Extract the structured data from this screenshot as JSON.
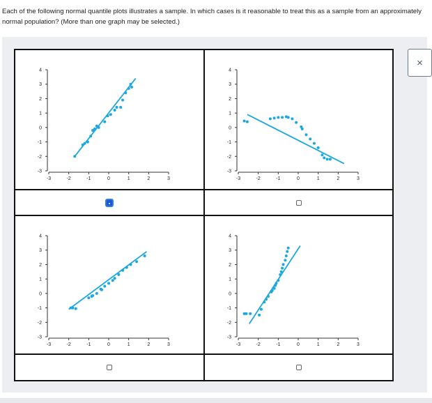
{
  "question": {
    "text": "Each of the following normal quantile plots illustrates a sample. In which cases is it reasonable to treat this as a sample from an approximately normal population? (More than one graph may be selected.)"
  },
  "colors": {
    "point": "#1ba7e0",
    "line": "#1ba7e0",
    "checkbox_selected": "#1a56d6"
  },
  "close_button": {
    "icon": "close-icon",
    "label": "×"
  },
  "plots": [
    {
      "id": "top-left",
      "checked": true,
      "chart_data": {
        "type": "scatter",
        "xlim": [
          -3,
          3
        ],
        "ylim": [
          -3,
          4
        ],
        "x_ticks": [
          "-3",
          "-2",
          "-1",
          "0",
          "1",
          "2",
          "3"
        ],
        "y_ticks": [
          "4",
          "3",
          "2",
          "1",
          "0",
          "-1",
          "-2",
          "-3"
        ],
        "points": [
          [
            -1.7,
            -2.0
          ],
          [
            -1.3,
            -1.2
          ],
          [
            -1.2,
            -1.1
          ],
          [
            -1.05,
            -1.0
          ],
          [
            -0.9,
            -0.6
          ],
          [
            -0.8,
            -0.2
          ],
          [
            -0.7,
            -0.1
          ],
          [
            -0.6,
            0.1
          ],
          [
            -0.5,
            0.0
          ],
          [
            -0.2,
            0.4
          ],
          [
            -0.05,
            0.8
          ],
          [
            0.1,
            0.9
          ],
          [
            0.3,
            1.2
          ],
          [
            0.4,
            1.4
          ],
          [
            0.6,
            1.4
          ],
          [
            0.7,
            1.9
          ],
          [
            0.85,
            2.4
          ],
          [
            1.0,
            2.7
          ],
          [
            1.1,
            3.0
          ],
          [
            1.15,
            2.8
          ]
        ],
        "line": [
          [
            -1.7,
            -2.0
          ],
          [
            1.35,
            3.4
          ]
        ]
      }
    },
    {
      "id": "top-right",
      "checked": false,
      "chart_data": {
        "type": "scatter",
        "xlim": [
          -3,
          3
        ],
        "ylim": [
          -3,
          4
        ],
        "x_ticks": [
          "-3",
          "-2",
          "-1",
          "0",
          "1",
          "2",
          "3"
        ],
        "y_ticks": [
          "4",
          "3",
          "2",
          "1",
          "0",
          "-1",
          "-2",
          "-3"
        ],
        "points": [
          [
            -2.7,
            0.45
          ],
          [
            -2.55,
            0.4
          ],
          [
            -1.4,
            0.6
          ],
          [
            -1.2,
            0.65
          ],
          [
            -1.0,
            0.7
          ],
          [
            -0.8,
            0.7
          ],
          [
            -0.6,
            0.75
          ],
          [
            -0.5,
            0.7
          ],
          [
            -0.3,
            0.6
          ],
          [
            -0.1,
            0.35
          ],
          [
            0.15,
            0.05
          ],
          [
            0.2,
            -0.1
          ],
          [
            0.4,
            -0.5
          ],
          [
            0.6,
            -0.8
          ],
          [
            0.8,
            -1.1
          ],
          [
            1.0,
            -1.4
          ],
          [
            1.2,
            -1.9
          ],
          [
            1.3,
            -2.1
          ],
          [
            1.45,
            -2.2
          ],
          [
            1.6,
            -2.2
          ]
        ],
        "line": [
          [
            -2.55,
            0.9
          ],
          [
            2.3,
            -2.5
          ]
        ]
      }
    },
    {
      "id": "bottom-left",
      "checked": false,
      "chart_data": {
        "type": "scatter",
        "xlim": [
          -3,
          3
        ],
        "ylim": [
          -3,
          4
        ],
        "x_ticks": [
          "-3",
          "-2",
          "-1",
          "0",
          "1",
          "2",
          "3"
        ],
        "y_ticks": [
          "4",
          "3",
          "2",
          "1",
          "0",
          "-1",
          "-2",
          "-3"
        ],
        "points": [
          [
            -1.9,
            -1.0
          ],
          [
            -1.8,
            -1.0
          ],
          [
            -1.65,
            -1.05
          ],
          [
            -1.0,
            -0.3
          ],
          [
            -0.85,
            -0.2
          ],
          [
            -0.8,
            -0.15
          ],
          [
            -0.6,
            0.0
          ],
          [
            -0.4,
            0.3
          ],
          [
            -0.35,
            0.25
          ],
          [
            -0.2,
            0.5
          ],
          [
            0.0,
            0.7
          ],
          [
            0.2,
            0.9
          ],
          [
            0.3,
            1.05
          ],
          [
            0.5,
            1.3
          ],
          [
            0.7,
            1.6
          ],
          [
            0.9,
            1.8
          ],
          [
            1.1,
            2.0
          ],
          [
            1.4,
            2.2
          ],
          [
            1.8,
            2.6
          ]
        ],
        "line": [
          [
            -2.0,
            -1.1
          ],
          [
            1.9,
            2.9
          ]
        ]
      }
    },
    {
      "id": "bottom-right",
      "checked": false,
      "chart_data": {
        "type": "scatter",
        "xlim": [
          -3,
          3
        ],
        "ylim": [
          -3,
          4
        ],
        "x_ticks": [
          "-3",
          "-2",
          "-1",
          "0",
          "1",
          "2",
          "3"
        ],
        "y_ticks": [
          "4",
          "3",
          "2",
          "1",
          "0",
          "-1",
          "-2",
          "-3"
        ],
        "points": [
          [
            -2.7,
            -1.4
          ],
          [
            -2.6,
            -1.4
          ],
          [
            -2.4,
            -1.4
          ],
          [
            -1.95,
            -1.5
          ],
          [
            -1.85,
            -1.1
          ],
          [
            -1.7,
            -0.6
          ],
          [
            -1.6,
            -0.4
          ],
          [
            -1.5,
            -0.2
          ],
          [
            -1.35,
            0.1
          ],
          [
            -1.3,
            0.2
          ],
          [
            -1.2,
            0.35
          ],
          [
            -1.15,
            0.55
          ],
          [
            -1.1,
            0.7
          ],
          [
            -1.0,
            0.9
          ],
          [
            -0.9,
            1.3
          ],
          [
            -0.85,
            1.5
          ],
          [
            -0.8,
            1.75
          ],
          [
            -0.75,
            2.0
          ],
          [
            -0.65,
            2.3
          ],
          [
            -0.6,
            2.6
          ],
          [
            -0.55,
            2.9
          ],
          [
            -0.5,
            3.15
          ]
        ],
        "line": [
          [
            -2.45,
            -2.1
          ],
          [
            0.1,
            3.3
          ]
        ]
      }
    }
  ]
}
